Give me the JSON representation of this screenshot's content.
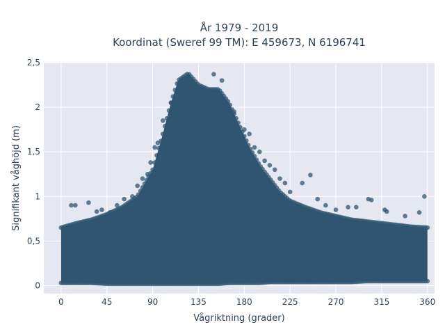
{
  "chart_data": {
    "type": "scatter",
    "title": "År 1979 - 2019",
    "subtitle": "Koordinat (Sweref 99 TM): E 459673, N 6196741",
    "xlabel": "Vågriktning (grader)",
    "ylabel": "Signifikant våghöjd (m)",
    "xlim": [
      -17,
      367
    ],
    "ylim": [
      -0.09,
      2.5
    ],
    "xticks": [
      0,
      45,
      90,
      135,
      180,
      225,
      270,
      315,
      360
    ],
    "xtick_labels": [
      "0",
      "45",
      "90",
      "135",
      "180",
      "225",
      "270",
      "315",
      "360"
    ],
    "yticks": [
      0,
      0.5,
      1,
      1.5,
      2,
      2.5
    ],
    "ytick_labels": [
      "0",
      "0,5",
      "1",
      "1,5",
      "2",
      "2,5"
    ],
    "grid": true,
    "colors": {
      "plot_bg": "#e5e8f1",
      "grid": "#ffffff",
      "marker": "#2f5570",
      "text": "#2a3f5f"
    },
    "envelope": {
      "x": [
        0,
        15,
        30,
        45,
        60,
        75,
        90,
        100,
        108,
        115,
        125,
        135,
        145,
        155,
        165,
        175,
        185,
        195,
        205,
        215,
        225,
        240,
        255,
        270,
        285,
        300,
        315,
        330,
        345,
        360
      ],
      "upper": [
        0.65,
        0.7,
        0.74,
        0.8,
        0.88,
        1.0,
        1.3,
        1.7,
        2.05,
        2.3,
        2.38,
        2.25,
        2.2,
        2.2,
        2.05,
        1.8,
        1.55,
        1.35,
        1.2,
        1.05,
        0.95,
        0.88,
        0.82,
        0.78,
        0.74,
        0.72,
        0.7,
        0.68,
        0.66,
        0.65
      ],
      "lower": [
        0.03,
        0.03,
        0.03,
        0.02,
        0.02,
        0.02,
        0.02,
        0.02,
        0.02,
        0.02,
        0.02,
        0.02,
        0.02,
        0.02,
        0.03,
        0.03,
        0.03,
        0.03,
        0.04,
        0.04,
        0.04,
        0.04,
        0.04,
        0.04,
        0.04,
        0.05,
        0.05,
        0.05,
        0.05,
        0.05
      ]
    },
    "outliers": [
      {
        "x": 10,
        "y": 0.9
      },
      {
        "x": 14,
        "y": 0.9
      },
      {
        "x": 27,
        "y": 0.93
      },
      {
        "x": 35,
        "y": 0.83
      },
      {
        "x": 40,
        "y": 0.85
      },
      {
        "x": 48,
        "y": 0.82
      },
      {
        "x": 55,
        "y": 0.9
      },
      {
        "x": 62,
        "y": 0.97
      },
      {
        "x": 70,
        "y": 1.0
      },
      {
        "x": 75,
        "y": 1.12
      },
      {
        "x": 80,
        "y": 1.2
      },
      {
        "x": 85,
        "y": 1.25
      },
      {
        "x": 88,
        "y": 1.38
      },
      {
        "x": 92,
        "y": 1.55
      },
      {
        "x": 95,
        "y": 1.6
      },
      {
        "x": 100,
        "y": 1.85
      },
      {
        "x": 104,
        "y": 1.8
      },
      {
        "x": 108,
        "y": 2.05
      },
      {
        "x": 150,
        "y": 2.37
      },
      {
        "x": 158,
        "y": 2.3
      },
      {
        "x": 170,
        "y": 1.95
      },
      {
        "x": 180,
        "y": 1.75
      },
      {
        "x": 185,
        "y": 1.7
      },
      {
        "x": 190,
        "y": 1.55
      },
      {
        "x": 195,
        "y": 1.5
      },
      {
        "x": 200,
        "y": 1.4
      },
      {
        "x": 205,
        "y": 1.35
      },
      {
        "x": 210,
        "y": 1.3
      },
      {
        "x": 215,
        "y": 1.2
      },
      {
        "x": 220,
        "y": 1.15
      },
      {
        "x": 225,
        "y": 1.05
      },
      {
        "x": 237,
        "y": 1.15
      },
      {
        "x": 245,
        "y": 1.24
      },
      {
        "x": 252,
        "y": 0.97
      },
      {
        "x": 260,
        "y": 0.9
      },
      {
        "x": 270,
        "y": 0.85
      },
      {
        "x": 282,
        "y": 0.88
      },
      {
        "x": 290,
        "y": 0.88
      },
      {
        "x": 302,
        "y": 0.97
      },
      {
        "x": 305,
        "y": 0.96
      },
      {
        "x": 318,
        "y": 0.85
      },
      {
        "x": 320,
        "y": 0.83
      },
      {
        "x": 338,
        "y": 0.78
      },
      {
        "x": 352,
        "y": 0.82
      },
      {
        "x": 357,
        "y": 1.0
      }
    ]
  }
}
